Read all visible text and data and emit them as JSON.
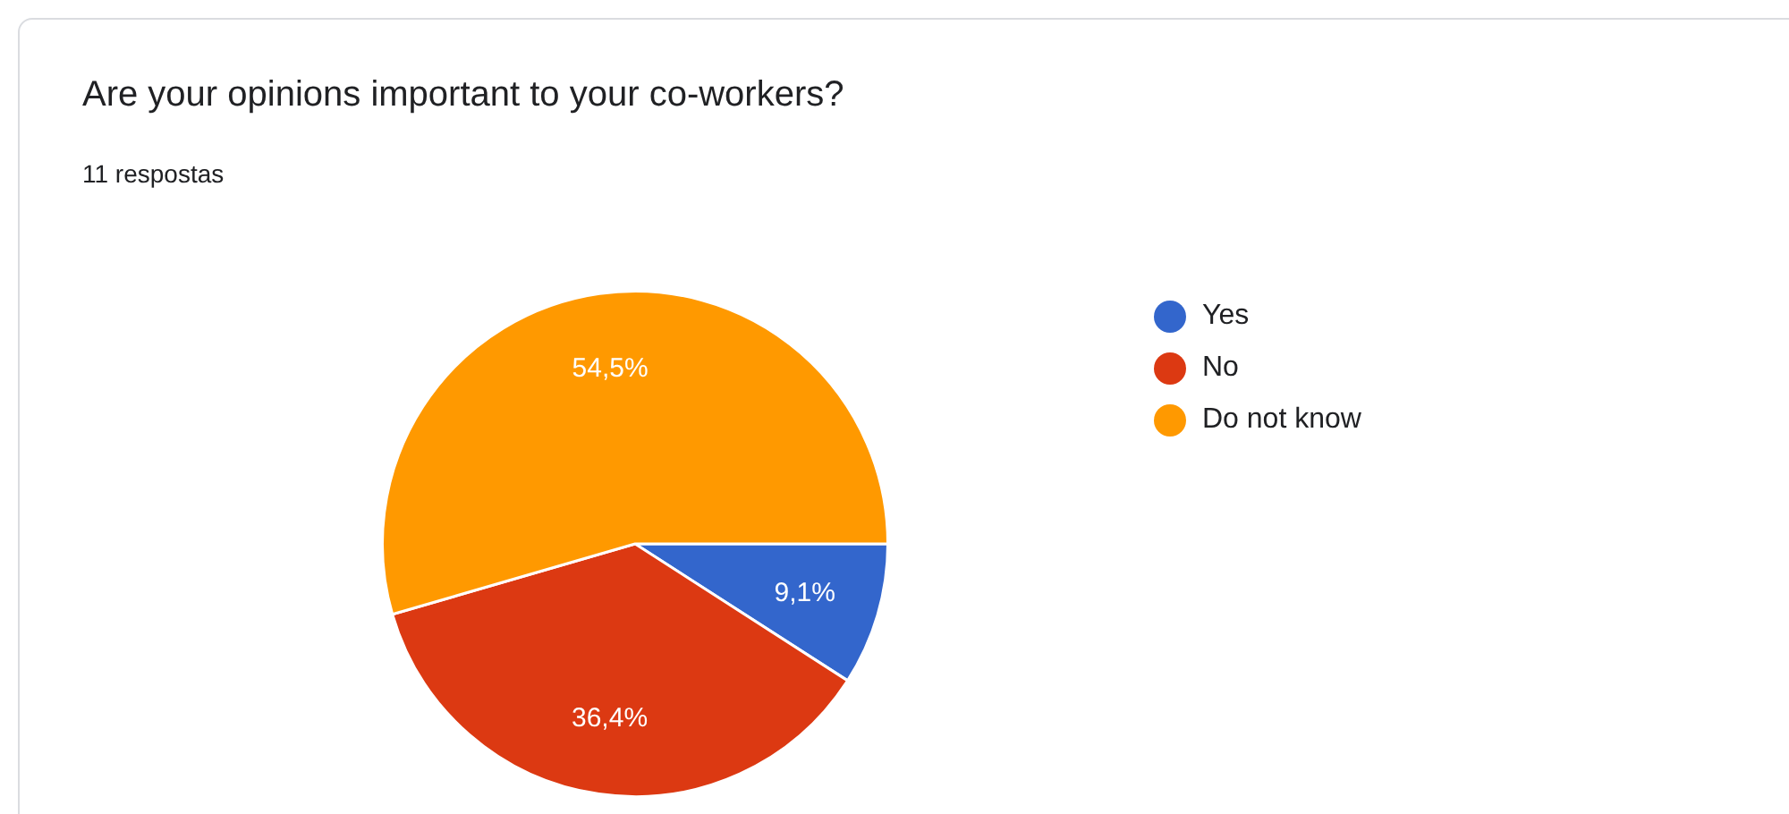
{
  "chart_data": {
    "type": "pie",
    "title": "Are your opinions important to your co-workers?",
    "subtitle": "11 respostas",
    "categories": [
      "Yes",
      "No",
      "Do not know"
    ],
    "values": [
      9.1,
      36.4,
      54.5
    ],
    "value_labels": [
      "9,1%",
      "36,4%",
      "54,5%"
    ],
    "colors": [
      "#3366cc",
      "#dc3912",
      "#ff9900"
    ],
    "legend": "right"
  }
}
